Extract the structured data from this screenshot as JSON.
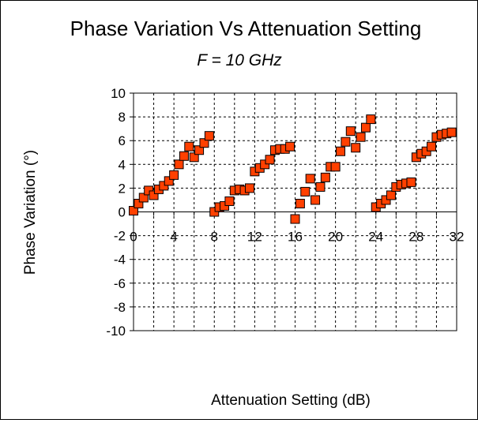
{
  "chart_data": {
    "type": "scatter",
    "title": "Phase Variation Vs Attenuation Setting",
    "subtitle": "F = 10 GHz",
    "xlabel": "Attenuation Setting (dB)",
    "ylabel": "Phase Variation (°)",
    "xlim": [
      0,
      32
    ],
    "ylim": [
      -10,
      10
    ],
    "x_ticks": [
      0,
      4,
      8,
      12,
      16,
      20,
      24,
      28,
      32
    ],
    "y_ticks": [
      10,
      8,
      6,
      4,
      2,
      0,
      -2,
      -4,
      -6,
      -8,
      -10
    ],
    "x_tick_labels": [
      "0",
      "4",
      "8",
      "12",
      "16",
      "20",
      "24",
      "28",
      "32"
    ],
    "y_tick_labels": [
      "10",
      "8",
      "6",
      "4",
      "2",
      "0",
      "-2",
      "-4",
      "-6",
      "-8",
      "-10"
    ],
    "grid": true,
    "marker_color": "#ff4000",
    "marker_edge_color": "#000000",
    "series": [
      {
        "x": [
          0,
          0.5,
          1,
          1.5,
          2,
          2.5,
          3,
          3.5,
          4,
          4.5,
          5,
          5.5,
          6,
          6.5,
          7,
          7.5,
          8,
          8.5,
          9,
          9.5,
          10,
          10.5,
          11,
          11.5,
          12,
          12.5,
          13,
          13.5,
          14,
          14.5,
          15,
          15.5,
          16,
          16.5,
          17,
          17.5,
          18,
          18.5,
          19,
          19.5,
          20,
          20.5,
          21,
          21.5,
          22,
          22.5,
          23,
          23.5,
          24,
          24.5,
          25,
          25.5,
          26,
          26.5,
          27,
          27.5,
          28,
          28.5,
          29,
          29.5,
          30,
          30.5,
          31,
          31.5
        ],
        "y": [
          0.1,
          0.7,
          1.2,
          1.8,
          1.4,
          1.9,
          2.2,
          2.6,
          3.1,
          4.0,
          4.7,
          5.5,
          4.6,
          5.2,
          5.8,
          6.4,
          0.0,
          0.4,
          0.5,
          0.9,
          1.8,
          1.9,
          1.8,
          2.0,
          3.4,
          3.7,
          4.0,
          4.4,
          5.2,
          5.3,
          5.3,
          5.5,
          -0.6,
          0.7,
          1.7,
          2.8,
          1.0,
          2.1,
          2.9,
          3.8,
          3.8,
          5.1,
          5.9,
          6.8,
          5.4,
          6.3,
          7.1,
          7.8,
          0.4,
          0.7,
          1.0,
          1.4,
          2.1,
          2.3,
          2.4,
          2.5,
          4.6,
          4.9,
          5.1,
          5.5,
          6.3,
          6.5,
          6.6,
          6.7
        ]
      }
    ]
  }
}
